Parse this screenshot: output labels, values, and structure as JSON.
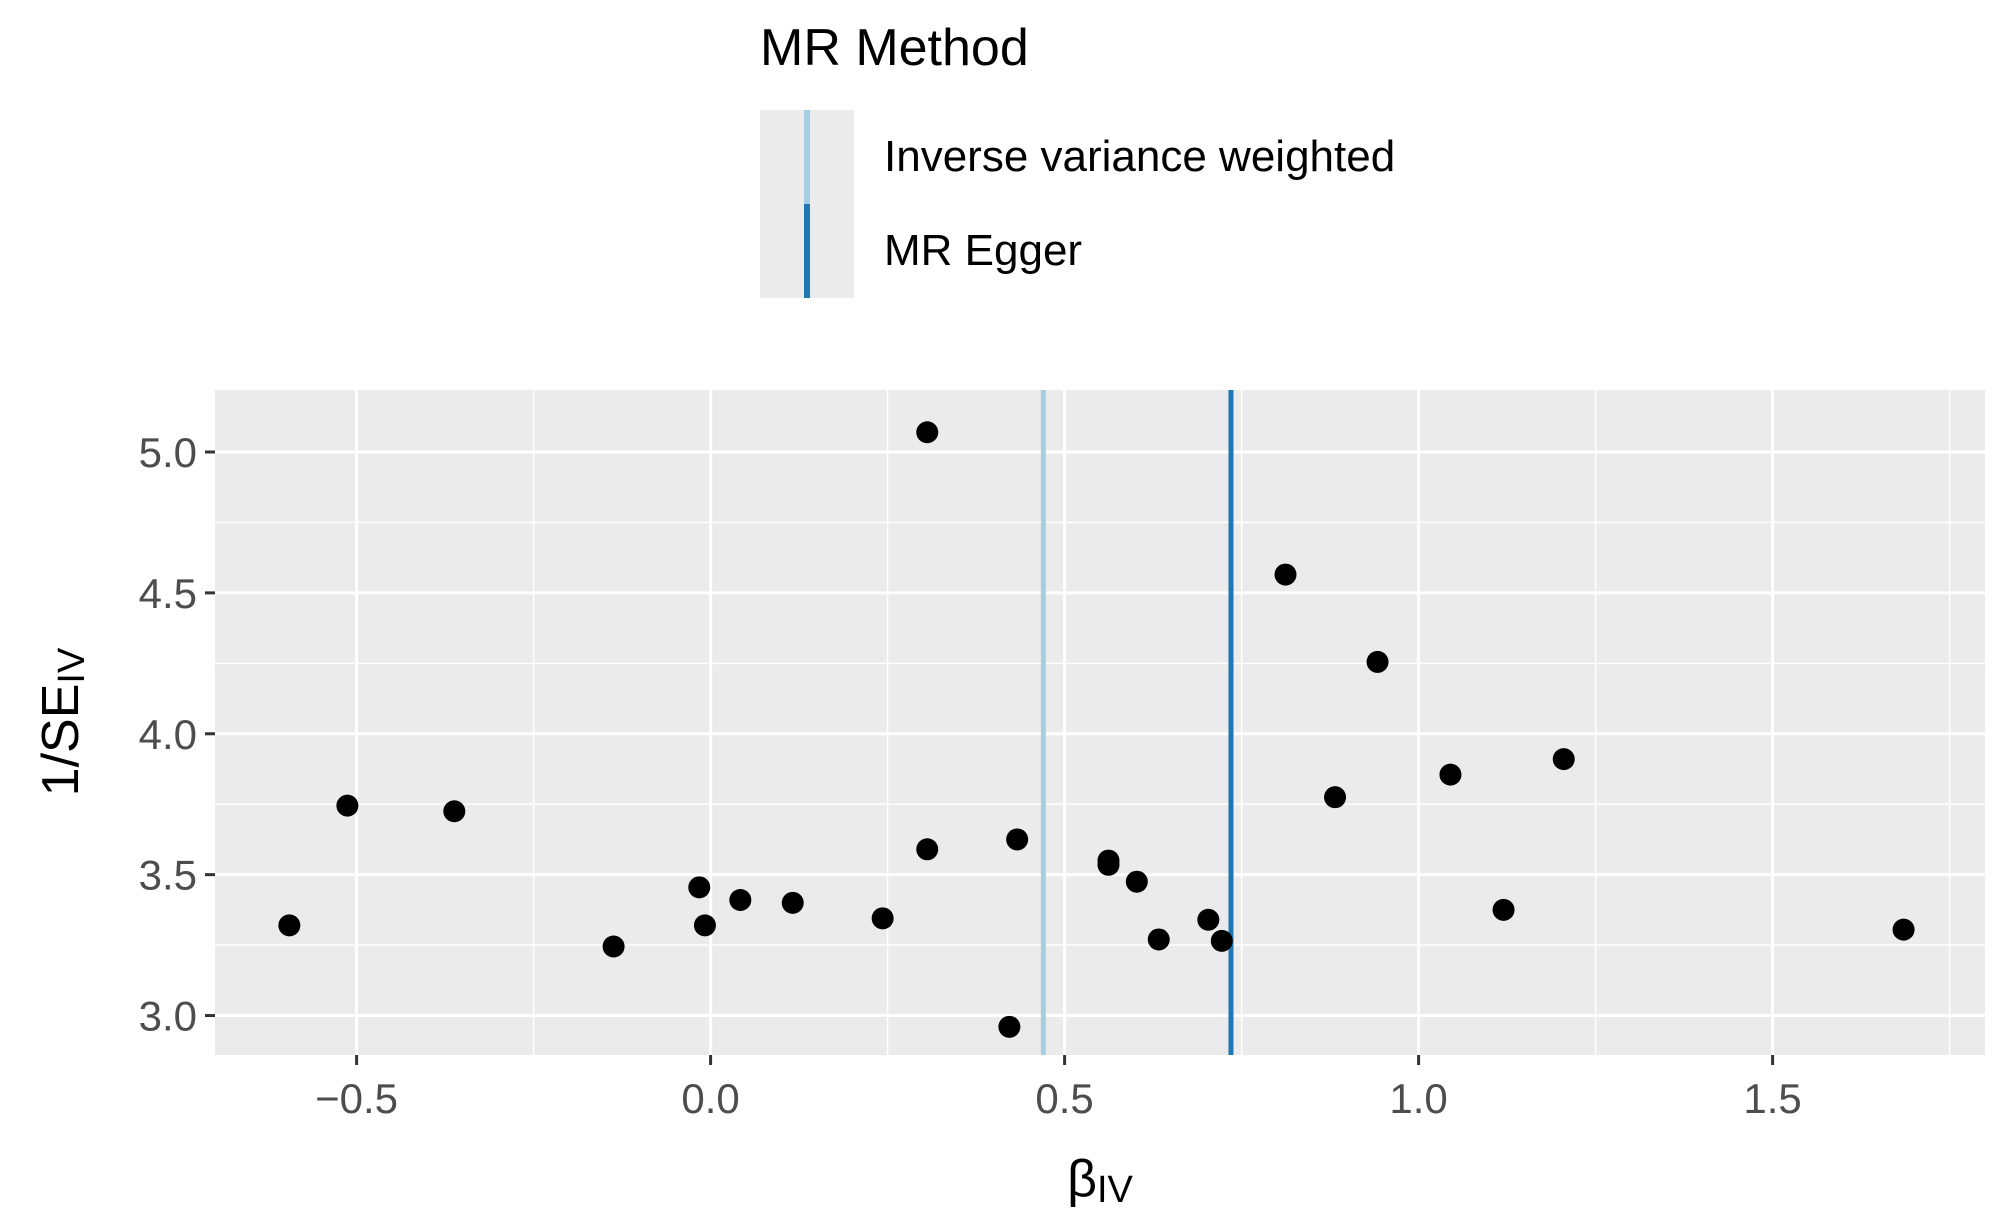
{
  "legend": {
    "title": "MR Method",
    "items": [
      {
        "label": "Inverse variance weighted",
        "color": "#a6cee3"
      },
      {
        "label": "MR Egger",
        "color": "#1f78b4"
      }
    ]
  },
  "chart_data": {
    "type": "scatter",
    "xlabel": "βIV",
    "ylabel": "1/SEIV",
    "xlim": [
      -0.7,
      1.8
    ],
    "ylim": [
      2.86,
      5.22
    ],
    "x_ticks": [
      -0.5,
      0.0,
      0.5,
      1.0,
      1.5
    ],
    "x_tick_labels": [
      "−0.5",
      "0.0",
      "0.5",
      "1.0",
      "1.5"
    ],
    "y_ticks": [
      3.0,
      3.5,
      4.0,
      4.5,
      5.0
    ],
    "y_tick_labels": [
      "3.0",
      "3.5",
      "4.0",
      "4.5",
      "5.0"
    ],
    "grid": true,
    "legend_position": "top",
    "point_color": "#000000",
    "points": [
      {
        "x": -0.595,
        "y": 3.32
      },
      {
        "x": -0.513,
        "y": 3.745
      },
      {
        "x": -0.362,
        "y": 3.725
      },
      {
        "x": -0.137,
        "y": 3.245
      },
      {
        "x": -0.016,
        "y": 3.455
      },
      {
        "x": -0.008,
        "y": 3.32
      },
      {
        "x": 0.042,
        "y": 3.41
      },
      {
        "x": 0.116,
        "y": 3.4
      },
      {
        "x": 0.243,
        "y": 3.345
      },
      {
        "x": 0.306,
        "y": 5.07
      },
      {
        "x": 0.306,
        "y": 3.59
      },
      {
        "x": 0.422,
        "y": 2.96
      },
      {
        "x": 0.433,
        "y": 3.625
      },
      {
        "x": 0.562,
        "y": 3.55
      },
      {
        "x": 0.562,
        "y": 3.535
      },
      {
        "x": 0.602,
        "y": 3.475
      },
      {
        "x": 0.633,
        "y": 3.27
      },
      {
        "x": 0.703,
        "y": 3.34
      },
      {
        "x": 0.722,
        "y": 3.265
      },
      {
        "x": 0.812,
        "y": 4.565
      },
      {
        "x": 0.882,
        "y": 3.775
      },
      {
        "x": 0.942,
        "y": 4.255
      },
      {
        "x": 1.045,
        "y": 3.855
      },
      {
        "x": 1.12,
        "y": 3.375
      },
      {
        "x": 1.205,
        "y": 3.91
      },
      {
        "x": 1.685,
        "y": 3.305
      }
    ],
    "reference_lines": [
      {
        "method": "Inverse variance weighted",
        "x": 0.47,
        "color": "#a6cee3"
      },
      {
        "method": "MR Egger",
        "x": 0.735,
        "color": "#1f78b4"
      }
    ]
  }
}
